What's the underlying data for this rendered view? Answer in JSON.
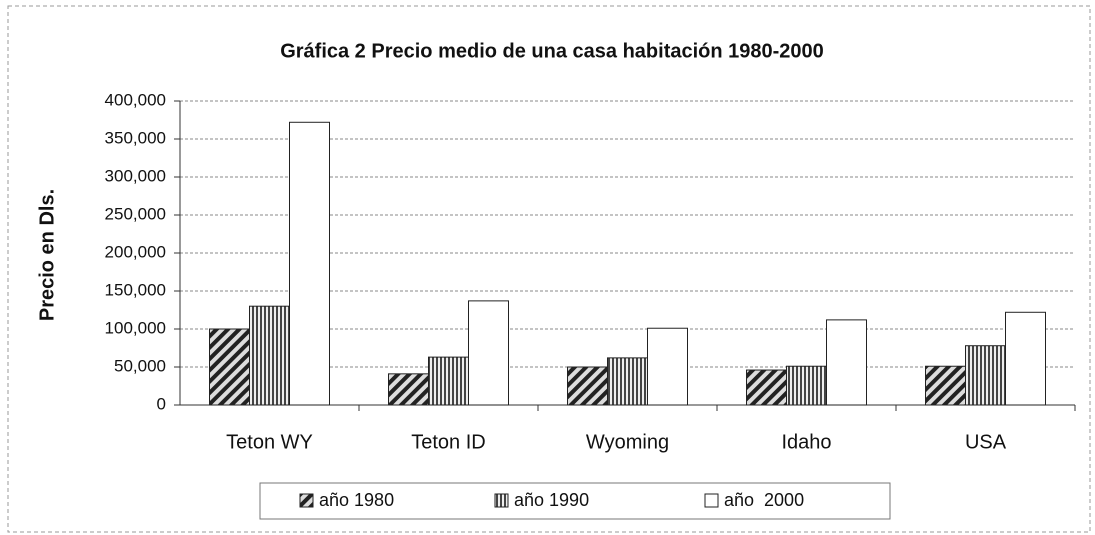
{
  "chart_data": {
    "type": "bar",
    "title": "Gráfica 2 Precio medio de una casa habitación 1980-2000",
    "y_label": "Precio en Dls.",
    "categories": [
      "Teton WY",
      "Teton ID",
      "Wyoming",
      "Idaho",
      "USA"
    ],
    "series": [
      {
        "name": "año 1980",
        "color": "#222222",
        "pattern": "diagonal",
        "values": [
          100000,
          41000,
          50000,
          46000,
          51000
        ]
      },
      {
        "name": "año 1990",
        "color": "#555555",
        "pattern": "vertical",
        "values": [
          130000,
          63000,
          62000,
          51000,
          78000
        ]
      },
      {
        "name": "año  2000",
        "color": "#ffffff",
        "pattern": "none",
        "values": [
          372000,
          137000,
          101000,
          112000,
          122000
        ]
      }
    ],
    "ylim": [
      0,
      400000
    ],
    "yticks": [
      0,
      {
        "value": 50000,
        "label": "50,000"
      },
      {
        "value": 100000,
        "label": "100,000"
      },
      {
        "value": 150000,
        "label": "150,000"
      },
      {
        "value": 200000,
        "label": "200,000"
      },
      {
        "value": 250000,
        "label": "250,000"
      },
      {
        "value": 300000,
        "label": "300,000"
      },
      {
        "value": 350000,
        "label": "350,000"
      },
      {
        "value": 400000,
        "label": "400,000"
      }
    ],
    "grid": true,
    "legend": "bottom"
  }
}
